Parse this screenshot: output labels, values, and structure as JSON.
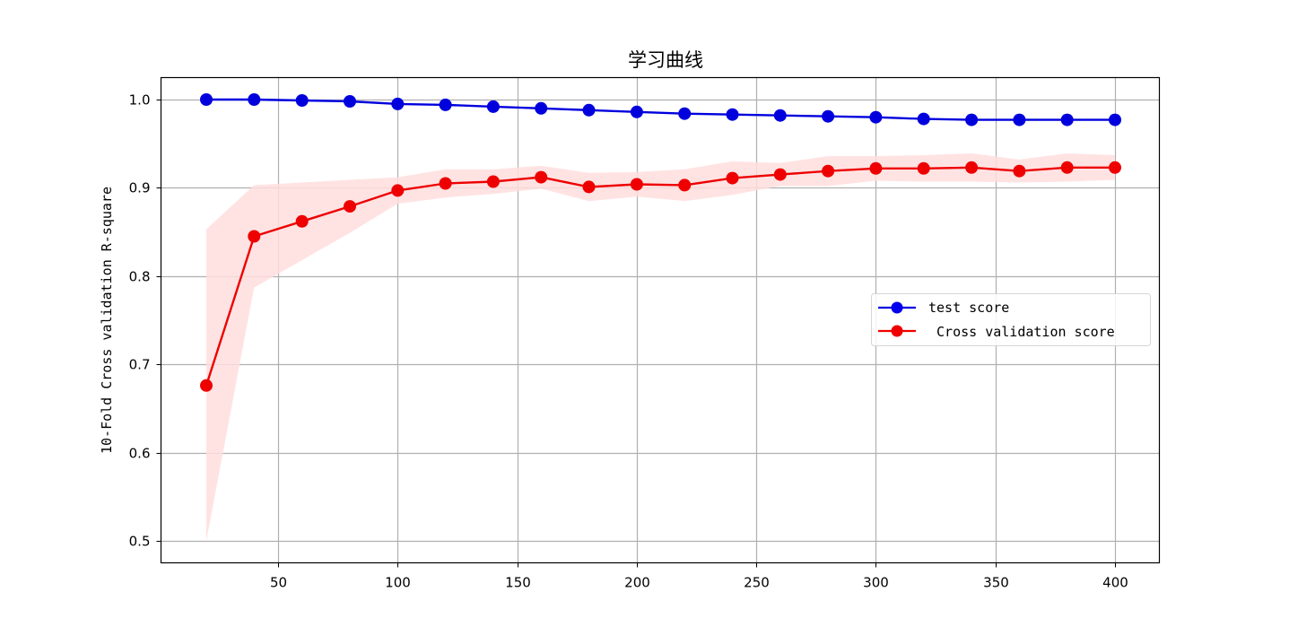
{
  "chart_data": {
    "type": "line",
    "title": "学习曲线",
    "xlabel": "",
    "ylabel": "10-Fold Cross validation R-square",
    "xlim": [
      1,
      419
    ],
    "ylim": [
      0.475,
      1.025
    ],
    "xticks": [
      50,
      100,
      150,
      200,
      250,
      300,
      350,
      400
    ],
    "yticks": [
      0.5,
      0.6,
      0.7,
      0.8,
      0.9,
      1.0
    ],
    "ytick_labels": [
      "0.5",
      "0.6",
      "0.7",
      "0.8",
      "0.9",
      "1.0"
    ],
    "grid": true,
    "legend_position": "center right",
    "x": [
      20,
      40,
      60,
      80,
      100,
      120,
      140,
      160,
      180,
      200,
      220,
      240,
      260,
      280,
      300,
      320,
      340,
      360,
      380,
      400
    ],
    "series": [
      {
        "name": "test score",
        "color": "#0000dd",
        "marker": "circle",
        "values": [
          1.0,
          1.0,
          0.999,
          0.998,
          0.995,
          0.994,
          0.992,
          0.99,
          0.988,
          0.986,
          0.984,
          0.983,
          0.982,
          0.981,
          0.98,
          0.978,
          0.977,
          0.977,
          0.977,
          0.977
        ]
      },
      {
        "name": " Cross validation score",
        "color": "#ee0000",
        "marker": "circle",
        "values": [
          0.676,
          0.845,
          0.862,
          0.879,
          0.897,
          0.905,
          0.907,
          0.912,
          0.901,
          0.904,
          0.903,
          0.911,
          0.915,
          0.919,
          0.922,
          0.922,
          0.923,
          0.919,
          0.923,
          0.923
        ],
        "band_upper": [
          0.853,
          0.903,
          0.906,
          0.909,
          0.912,
          0.921,
          0.921,
          0.925,
          0.917,
          0.918,
          0.921,
          0.93,
          0.928,
          0.936,
          0.936,
          0.937,
          0.939,
          0.932,
          0.939,
          0.937
        ],
        "band_lower": [
          0.5,
          0.787,
          0.818,
          0.849,
          0.882,
          0.889,
          0.893,
          0.899,
          0.885,
          0.89,
          0.885,
          0.892,
          0.902,
          0.902,
          0.908,
          0.907,
          0.907,
          0.906,
          0.907,
          0.909
        ],
        "band_color": "#ffdede"
      }
    ]
  }
}
